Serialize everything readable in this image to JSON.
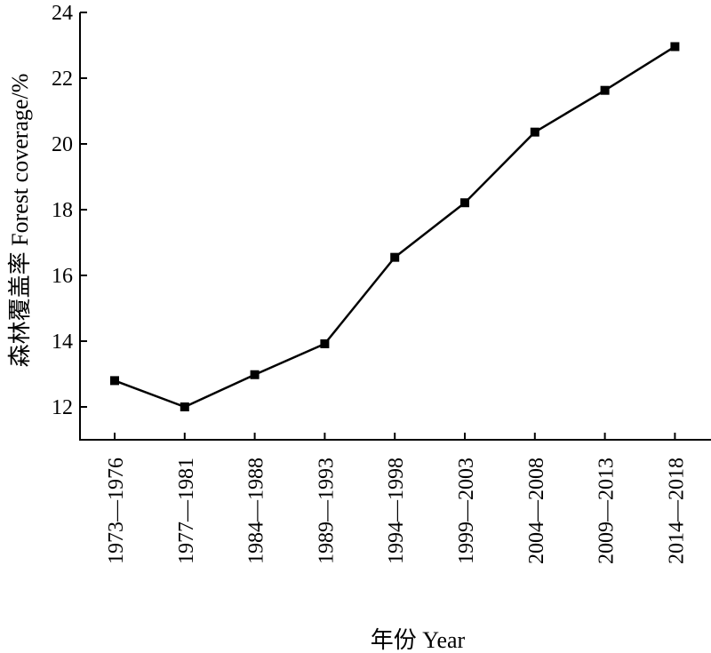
{
  "chart_data": {
    "type": "line",
    "categories": [
      "1973—1976",
      "1977—1981",
      "1984—1988",
      "1989—1993",
      "1994—1998",
      "1999—2003",
      "2004—2008",
      "2009—2013",
      "2014—2018"
    ],
    "series": [
      {
        "values": [
          12.8,
          12.0,
          12.98,
          13.92,
          16.55,
          18.21,
          20.36,
          21.63,
          22.96
        ]
      }
    ],
    "xlabel": "年份 Year",
    "ylabel": "森林覆盖率 Forest coverage/%",
    "ylim": [
      11,
      24
    ],
    "yticks": [
      12,
      14,
      16,
      18,
      20,
      22,
      24
    ],
    "grid": false,
    "legend": "none",
    "line_color": "#000000",
    "marker": "square"
  }
}
